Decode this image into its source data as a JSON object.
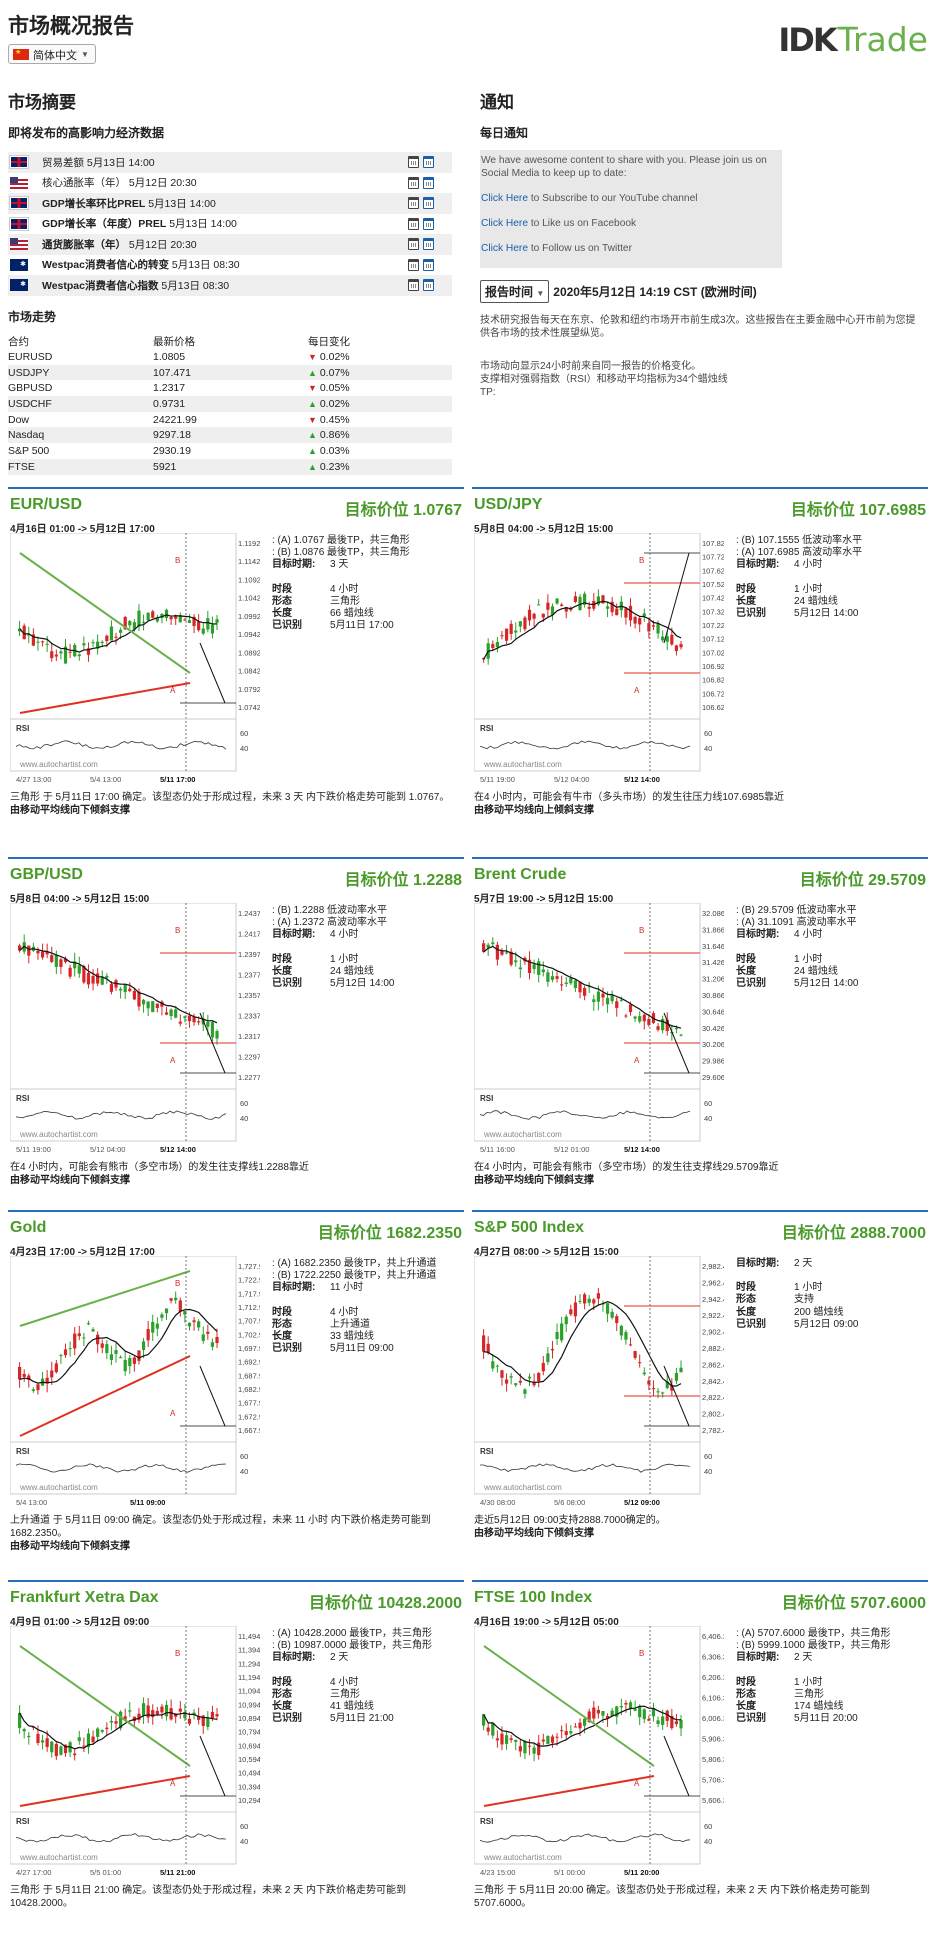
{
  "header": {
    "title": "市场概况报告",
    "language": "简体中文",
    "logo_mark": "IDK",
    "logo_text": "Trade"
  },
  "summary": {
    "heading": "市场摘要",
    "events_heading": "即将发布的高影响力经济数据",
    "events": [
      {
        "flag": "uk",
        "name": "贸易差额",
        "time": "5月13日 14:00",
        "bold": false
      },
      {
        "flag": "us",
        "name": "核心通胀率（年）",
        "time": "5月12日 20:30",
        "bold": false
      },
      {
        "flag": "uk",
        "name": "GDP增长率环比PREL",
        "time": "5月13日 14:00",
        "bold": true
      },
      {
        "flag": "uk",
        "name": "GDP增长率（年度）PREL",
        "time": "5月13日 14:00",
        "bold": true
      },
      {
        "flag": "us",
        "name": "通货膨胀率（年）",
        "time": "5月12日 20:30",
        "bold": true
      },
      {
        "flag": "au",
        "name": "Westpac消费者信心的转变",
        "time": "5月13日 08:30",
        "bold": true
      },
      {
        "flag": "au",
        "name": "Westpac消费者信心指数",
        "time": "5月13日 08:30",
        "bold": true
      }
    ],
    "trend_heading": "市场走势",
    "trend_columns": [
      "合约",
      "最新价格",
      "每日变化"
    ],
    "trend_rows": [
      {
        "symbol": "EURUSD",
        "price": "1.0805",
        "dir": "down",
        "change": "0.02%"
      },
      {
        "symbol": "USDJPY",
        "price": "107.471",
        "dir": "up",
        "change": "0.07%"
      },
      {
        "symbol": "GBPUSD",
        "price": "1.2317",
        "dir": "down",
        "change": "0.05%"
      },
      {
        "symbol": "USDCHF",
        "price": "0.9731",
        "dir": "up",
        "change": "0.02%"
      },
      {
        "symbol": "Dow",
        "price": "24221.99",
        "dir": "down",
        "change": "0.45%"
      },
      {
        "symbol": "Nasdaq",
        "price": "9297.18",
        "dir": "up",
        "change": "0.86%"
      },
      {
        "symbol": "S&P 500",
        "price": "2930.19",
        "dir": "up",
        "change": "0.03%"
      },
      {
        "symbol": "FTSE",
        "price": "5921",
        "dir": "up",
        "change": "0.23%"
      }
    ]
  },
  "notices": {
    "heading": "通知",
    "daily_heading": "每日通知",
    "intro": "We have awesome content to share with you. Please join us on Social Media to keep up to date:",
    "links": [
      {
        "link": "Click Here",
        "rest": " to Subscribe to our YouTube channel"
      },
      {
        "link": "Click Here",
        "rest": " to Like us on Facebook"
      },
      {
        "link": "Click Here",
        "rest": " to Follow us on Twitter"
      }
    ],
    "report_time_label": "报告时间",
    "report_time": "2020年5月12日 14:19 CST (欧洲时间)",
    "desc1": "技术研究报告每天在东京、伦敦和纽约市场开市前生成3次。这些报告在主要金融中心开市前为您提供各市场的技术性展望纵览。",
    "desc2a": "市场动向显示24小时前来自同一报告的价格变化。",
    "desc2b": "支撑相对强弱指数（RSI）和移动平均指标为34个蜡烛线",
    "desc2c": "TP:"
  },
  "colors": {
    "accent_blue": "#2a6ebb",
    "title_green": "#4a9a2a",
    "bull": "#2ca02c",
    "bear": "#d62728"
  },
  "panels": [
    {
      "symbol": "EUR/USD",
      "target": "目标价位 1.0767",
      "range": "4月16日 01:00 -> 5月12日 17:00",
      "info_lines": [
        ": (A) 1.0767 最後TP，共三角形",
        ": (B) 1.0876 最後TP，共三角形"
      ],
      "kv1": [
        {
          "k": "目标时期:",
          "v": "3 天"
        }
      ],
      "kv2": [
        {
          "k": "时段",
          "v": "4 小时"
        },
        {
          "k": "形态",
          "v": "三角形"
        },
        {
          "k": "长度",
          "v": "66 蜡烛线"
        },
        {
          "k": "已识别",
          "v": "5月11日 17:00"
        }
      ],
      "desc": "三角形 于 5月11日 17:00 确定。该型态仍处于形成过程，未来 3 天 内下跌价格走势可能到 1.0767。",
      "desc_bold": "由移动平均线向下倾斜支撑",
      "chart": {
        "y_ticks": [
          "1.1192",
          "1.1142",
          "1.1092",
          "1.1042",
          "1.0992",
          "1.0942",
          "1.0892",
          "1.0842",
          "1.0792",
          "1.0742"
        ],
        "x_ticks": [
          "4/27 13:00",
          "5/4 13:00",
          "5/11 17:00"
        ],
        "rsi_ticks": [
          "60",
          "40"
        ],
        "watermark": "www.autochartist.com",
        "label_a": "A",
        "label_b": "B",
        "pattern": "triangle",
        "trend": "down"
      }
    },
    {
      "symbol": "USD/JPY",
      "target": "目标价位 107.6985",
      "range": "5月8日 04:00 -> 5月12日 15:00",
      "info_lines": [
        ": (B) 107.1555 低波动率水平",
        ": (A) 107.6985 高波动率水平"
      ],
      "kv1": [
        {
          "k": "目标时期:",
          "v": "4 小时"
        }
      ],
      "kv2": [
        {
          "k": "时段",
          "v": "1 小时"
        },
        {
          "k": "长度",
          "v": "24 蜡烛线"
        },
        {
          "k": "已识别",
          "v": "5月12日 14:00"
        }
      ],
      "desc": "在4 小时内，可能会有牛市（多头市场）的发生往压力线107.6985靠近",
      "desc_bold": "由移动平均线向上倾斜支撑",
      "chart": {
        "y_ticks": [
          "107.8253",
          "107.7253",
          "107.6253",
          "107.5253",
          "107.4253",
          "107.3253",
          "107.2253",
          "107.1253",
          "107.0253",
          "106.9253",
          "106.8253",
          "106.7253",
          "106.6253"
        ],
        "x_ticks": [
          "5/11 19:00",
          "5/12 04:00",
          "5/12 14:00"
        ],
        "rsi_ticks": [
          "60",
          "40"
        ],
        "watermark": "www.autochartist.com",
        "label_a": "A",
        "label_b": "B",
        "pattern": "levels",
        "trend": "up"
      }
    },
    {
      "symbol": "GBP/USD",
      "target": "目标价位 1.2288",
      "range": "5月8日 04:00 -> 5月12日 15:00",
      "info_lines": [
        ": (B) 1.2288 低波动率水平",
        ": (A) 1.2372 高波动率水平"
      ],
      "kv1": [
        {
          "k": "目标时期:",
          "v": "4 小时"
        }
      ],
      "kv2": [
        {
          "k": "时段",
          "v": "1 小时"
        },
        {
          "k": "长度",
          "v": "24 蜡烛线"
        },
        {
          "k": "已识别",
          "v": "5月12日 14:00"
        }
      ],
      "desc": "在4 小时内，可能会有熊市（多空市场）的发生往支撑线1.2288靠近",
      "desc_bold": "由移动平均线向下倾斜支撑",
      "chart": {
        "y_ticks": [
          "1.2437",
          "1.2417",
          "1.2397",
          "1.2377",
          "1.2357",
          "1.2337",
          "1.2317",
          "1.2297",
          "1.2277"
        ],
        "x_ticks": [
          "5/11 19:00",
          "5/12 04:00",
          "5/12 14:00"
        ],
        "rsi_ticks": [
          "60",
          "40"
        ],
        "watermark": "www.autochartist.com",
        "label_a": "A",
        "label_b": "B",
        "pattern": "levels",
        "trend": "down"
      }
    },
    {
      "symbol": "Brent Crude",
      "target": "目标价位 29.5709",
      "range": "5月7日 19:00 -> 5月12日 15:00",
      "info_lines": [
        ": (B) 29.5709 低波动率水平",
        ": (A) 31.1091 高波动率水平"
      ],
      "kv1": [
        {
          "k": "目标时期:",
          "v": "4 小时"
        }
      ],
      "kv2": [
        {
          "k": "时段",
          "v": "1 小时"
        },
        {
          "k": "长度",
          "v": "24 蜡烛线"
        },
        {
          "k": "已识别",
          "v": "5月12日 14:00"
        }
      ],
      "desc": "在4 小时内，可能会有熊市（多空市场）的发生往支撑线29.5709靠近",
      "desc_bold": "由移动平均线向下倾斜支撑",
      "chart": {
        "y_ticks": [
          "32.0860",
          "31.8660",
          "31.6460",
          "31.4260",
          "31.2060",
          "30.8660",
          "30.6460",
          "30.4260",
          "30.2060",
          "29.9860",
          "29.6060"
        ],
        "x_ticks": [
          "5/11 16:00",
          "5/12 01:00",
          "5/12 14:00"
        ],
        "rsi_ticks": [
          "60",
          "40"
        ],
        "watermark": "www.autochartist.com",
        "label_a": "A",
        "label_b": "B",
        "pattern": "levels",
        "trend": "down"
      }
    },
    {
      "symbol": "Gold",
      "target": "目标价位 1682.2350",
      "range": "4月23日 17:00 -> 5月12日 17:00",
      "info_lines": [
        ": (A) 1682.2350 最後TP，共上升通道",
        ": (B) 1722.2250 最後TP，共上升通道"
      ],
      "kv1": [
        {
          "k": "目标时期:",
          "v": "11 小时"
        }
      ],
      "kv2": [
        {
          "k": "时段",
          "v": "4 小时"
        },
        {
          "k": "形态",
          "v": "上升通道"
        },
        {
          "k": "长度",
          "v": "33 蜡烛线"
        },
        {
          "k": "已识别",
          "v": "5月11日 09:00"
        }
      ],
      "desc": "上升通道 于 5月11日 09:00 确定。该型态仍处于形成过程，未来 11 小时 内下跌价格走势可能到 1682.2350。",
      "desc_bold": "由移动平均线向下倾斜支撑",
      "chart": {
        "y_ticks": [
          "1,727.9969",
          "1,722.9969",
          "1,717.9969",
          "1,712.9969",
          "1,707.9969",
          "1,702.9969",
          "1,697.9969",
          "1,692.9969",
          "1,687.9969",
          "1,682.9969",
          "1,677.9969",
          "1,672.9969",
          "1,667.9969"
        ],
        "x_ticks": [
          "5/4 13:00",
          "5/11 09:00"
        ],
        "rsi_ticks": [
          "60",
          "40"
        ],
        "watermark": "www.autochartist.com",
        "label_a": "A",
        "label_b": "B",
        "pattern": "channel",
        "trend": "down"
      }
    },
    {
      "symbol": "S&P 500 Index",
      "target": "目标价位 2888.7000",
      "range": "4月27日 08:00 -> 5月12日 15:00",
      "info_lines": [],
      "kv1": [
        {
          "k": "目标时期:",
          "v": "2 天"
        }
      ],
      "kv2": [
        {
          "k": "时段",
          "v": "1 小时"
        },
        {
          "k": "形态",
          "v": "支持"
        },
        {
          "k": "长度",
          "v": "200 蜡烛线"
        },
        {
          "k": "已识别",
          "v": "5月12日 09:00"
        }
      ],
      "desc": "走近5月12日 09:00支持2888.7000确定的。",
      "desc_bold": "由移动平均线向下倾斜支撑",
      "chart": {
        "y_ticks": [
          "2,982.4200",
          "2,962.4200",
          "2,942.4200",
          "2,922.4200",
          "2,902.4200",
          "2,882.4200",
          "2,862.4200",
          "2,842.4200",
          "2,822.4200",
          "2,802.4200",
          "2,782.4200"
        ],
        "x_ticks": [
          "4/30 08:00",
          "5/6 08:00",
          "5/12 09:00"
        ],
        "rsi_ticks": [
          "60",
          "40"
        ],
        "watermark": "www.autochartist.com",
        "label_a": "",
        "label_b": "",
        "pattern": "support",
        "trend": "down"
      }
    },
    {
      "symbol": "Frankfurt Xetra Dax",
      "target": "目标价位 10428.2000",
      "range": "4月9日 01:00 -> 5月12日 09:00",
      "info_lines": [
        ": (A) 10428.2000 最後TP，共三角形",
        ": (B) 10987.0000 最後TP，共三角形"
      ],
      "kv1": [
        {
          "k": "目标时期:",
          "v": "2 天"
        }
      ],
      "kv2": [
        {
          "k": "时段",
          "v": "4 小时"
        },
        {
          "k": "形态",
          "v": "三角形"
        },
        {
          "k": "长度",
          "v": "41 蜡烛线"
        },
        {
          "k": "已识别",
          "v": "5月11日 21:00"
        }
      ],
      "desc": "三角形 于 5月11日 21:00 确定。该型态仍处于形成过程，未来 2 天 内下跌价格走势可能到 10428.2000。",
      "desc_bold": "",
      "chart": {
        "y_ticks": [
          "11,494.7050",
          "11,394.7050",
          "11,294.7050",
          "11,194.7050",
          "11,094.7050",
          "10,994.7050",
          "10,894.7050",
          "10,794.7050",
          "10,694.7050",
          "10,594.7050",
          "10,494.7050",
          "10,394.7050",
          "10,294.7050"
        ],
        "x_ticks": [
          "4/27 17:00",
          "5/5 01:00",
          "5/11 21:00"
        ],
        "rsi_ticks": [
          "60",
          "40"
        ],
        "watermark": "www.autochartist.com",
        "label_a": "A",
        "label_b": "B",
        "pattern": "triangle",
        "trend": "down"
      }
    },
    {
      "symbol": "FTSE 100 Index",
      "target": "目标价位 5707.6000",
      "range": "4月16日 19:00 -> 5月12日 05:00",
      "info_lines": [
        ": (A) 5707.6000 最後TP，共三角形",
        ": (B) 5999.1000 最後TP，共三角形"
      ],
      "kv1": [
        {
          "k": "目标时期:",
          "v": "2 天"
        }
      ],
      "kv2": [
        {
          "k": "时段",
          "v": "1 小时"
        },
        {
          "k": "形态",
          "v": "三角形"
        },
        {
          "k": "长度",
          "v": "174 蜡烛线"
        },
        {
          "k": "已识别",
          "v": "5月11日 20:00"
        }
      ],
      "desc": "三角形 于 5月11日 20:00 确定。该型态仍处于形成过程，未来 2 天 内下跌价格走势可能到 5707.6000。",
      "desc_bold": "",
      "chart": {
        "y_ticks": [
          "6,406.3150",
          "6,306.3150",
          "6,206.3150",
          "6,106.3150",
          "6,006.3150",
          "5,906.3150",
          "5,806.3150",
          "5,706.3150",
          "5,606.3150"
        ],
        "x_ticks": [
          "4/23 15:00",
          "5/1 00:00",
          "5/11 20:00"
        ],
        "rsi_ticks": [
          "60",
          "40"
        ],
        "watermark": "www.autochartist.com",
        "label_a": "A",
        "label_b": "B",
        "pattern": "triangle",
        "trend": "down"
      }
    }
  ]
}
